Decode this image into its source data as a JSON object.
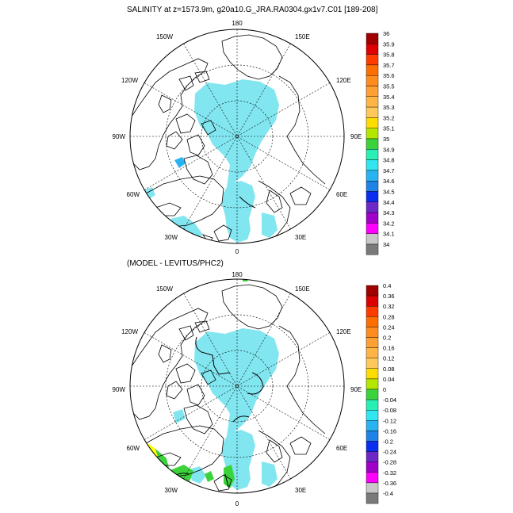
{
  "figure": {
    "title": "SALINITY at z=1573.9m, g20a10.G_JRA.RA0304.gx1v7.C01 [189-208]",
    "subtitle": "(MODEL - LEVITUS/PHC2)"
  },
  "map_labels": {
    "top": "180",
    "upper_left": "150W",
    "upper_right": "150E",
    "mid_left_upper": "120W",
    "mid_right_upper": "120E",
    "left": "90W",
    "right": "90E",
    "mid_left_lower": "60W",
    "mid_right_lower": "60E",
    "lower_left": "30W",
    "lower_right": "30E",
    "bottom": "0"
  },
  "colorbar_top": {
    "labels": [
      "36",
      "35.9",
      "35.8",
      "35.7",
      "35.6",
      "35.5",
      "35.4",
      "35.3",
      "35.2",
      "35.1",
      "35",
      "34.9",
      "34.8",
      "34.7",
      "34.6",
      "34.5",
      "34.4",
      "34.3",
      "34.2",
      "34.1",
      "34"
    ],
    "colors": [
      "#a00000",
      "#dc0000",
      "#ff3c00",
      "#ff6e00",
      "#ff8c1e",
      "#ffa032",
      "#ffb446",
      "#ffc85a",
      "#ffdc00",
      "#b4e600",
      "#3cd23c",
      "#28f0b4",
      "#32e6f0",
      "#28b4f0",
      "#1e82e6",
      "#0a2df0",
      "#6e28c8",
      "#a000c8",
      "#ff00ff",
      "#c8c8c8"
    ]
  },
  "colorbar_bottom": {
    "labels": [
      "0.4",
      "0.36",
      "0.32",
      "0.28",
      "0.24",
      "0.2",
      "0.16",
      "0.12",
      "0.08",
      "0.04",
      "0",
      "-0.04",
      "-0.08",
      "-0.12",
      "-0.16",
      "-0.2",
      "-0.24",
      "-0.28",
      "-0.32",
      "-0.36",
      "-0.4"
    ],
    "colors": [
      "#a00000",
      "#dc0000",
      "#ff3c00",
      "#ff6e00",
      "#ff8c1e",
      "#ffa032",
      "#ffb446",
      "#ffc85a",
      "#ffdc00",
      "#b4e600",
      "#3cd23c",
      "#28f0b4",
      "#32e6f0",
      "#28b4f0",
      "#1e82e6",
      "#0a2df0",
      "#6e28c8",
      "#a000c8",
      "#ff00ff",
      "#c8c8c8"
    ]
  },
  "colors": {
    "fill_main": "#82e6f0",
    "fill_blue": "#28b4f0",
    "fill_green": "#3cd23c",
    "fill_yellow": "#ffff00",
    "fill_gray": "#7a7a7a"
  }
}
